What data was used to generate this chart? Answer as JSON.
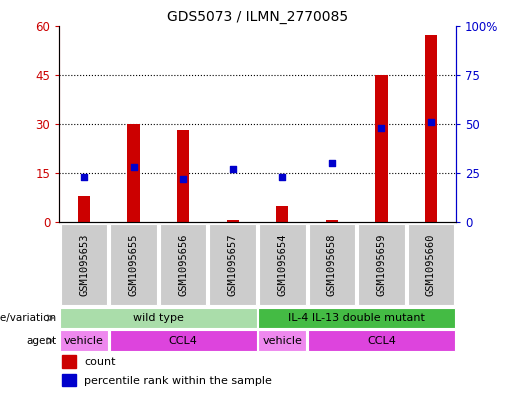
{
  "title": "GDS5073 / ILMN_2770085",
  "samples": [
    "GSM1095653",
    "GSM1095655",
    "GSM1095656",
    "GSM1095657",
    "GSM1095654",
    "GSM1095658",
    "GSM1095659",
    "GSM1095660"
  ],
  "counts": [
    8,
    30,
    28,
    0.5,
    5,
    0.5,
    45,
    57
  ],
  "percentiles": [
    23,
    28,
    22,
    27,
    23,
    30,
    48,
    51
  ],
  "ylim_left": [
    0,
    60
  ],
  "ylim_right": [
    0,
    100
  ],
  "yticks_left": [
    0,
    15,
    30,
    45,
    60
  ],
  "yticks_right": [
    0,
    25,
    50,
    75,
    100
  ],
  "bar_color": "#cc0000",
  "dot_color": "#0000cc",
  "bg_color": "#ffffff",
  "genotype_labels": [
    {
      "label": "wild type",
      "start": 0,
      "end": 4,
      "color": "#aaddaa"
    },
    {
      "label": "IL-4 IL-13 double mutant",
      "start": 4,
      "end": 8,
      "color": "#44bb44"
    }
  ],
  "agent_labels": [
    {
      "label": "vehicle",
      "start": 0,
      "end": 1,
      "color": "#ee88ee"
    },
    {
      "label": "CCL4",
      "start": 1,
      "end": 4,
      "color": "#dd44dd"
    },
    {
      "label": "vehicle",
      "start": 4,
      "end": 5,
      "color": "#ee88ee"
    },
    {
      "label": "CCL4",
      "start": 5,
      "end": 8,
      "color": "#dd44dd"
    }
  ],
  "left_axis_color": "#cc0000",
  "right_axis_color": "#0000cc",
  "title_fontsize": 10
}
